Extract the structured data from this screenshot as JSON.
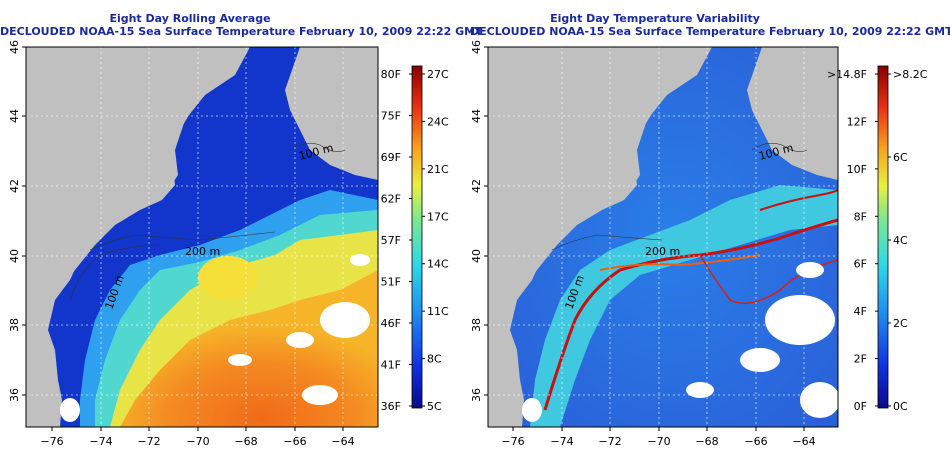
{
  "panels": [
    {
      "title": "Eight Day Rolling Average",
      "subtitle": "DECLOUDED NOAA-15 Sea Surface Temperature February 10, 2009 22:22 GMT",
      "lon_ticks": [
        "-76",
        "-74",
        "-72",
        "-70",
        "-68",
        "-66",
        "-64"
      ],
      "lat_ticks": [
        "46",
        "44",
        "42",
        "40",
        "38",
        "36"
      ],
      "colorbar_left": [
        "80F",
        "75F",
        "69F",
        "62F",
        "57F",
        "51F",
        "46F",
        "41F",
        "36F"
      ],
      "colorbar_right": [
        "27C",
        "24C",
        "21C",
        "17C",
        "14C",
        "11C",
        "8C",
        "5C"
      ],
      "contour_labels": [
        "100 m",
        "100 m",
        "200 m"
      ]
    },
    {
      "title": "Eight Day Temperature Variability",
      "subtitle": "DECLOUDED NOAA-15 Sea Surface Temperature February 10, 2009 22:22 GMT",
      "lon_ticks": [
        "-76",
        "-74",
        "-72",
        "-70",
        "-68",
        "-66",
        "-64"
      ],
      "lat_ticks": [
        "46",
        "44",
        "42",
        "40",
        "38",
        "36"
      ],
      "colorbar_left": [
        ">14.8F",
        "12F",
        "10F",
        "8F",
        "6F",
        "4F",
        "2F",
        "0F"
      ],
      "colorbar_right": [
        ">8.2C",
        "6C",
        "4C",
        "2C",
        "0C"
      ],
      "contour_labels": [
        "100 m",
        "100 m",
        "200 m"
      ]
    }
  ],
  "colors": {
    "title": "#1b2a9a",
    "land": "#c0c0c0",
    "cold": "#0a1fb8",
    "warm": "#e8501a"
  }
}
